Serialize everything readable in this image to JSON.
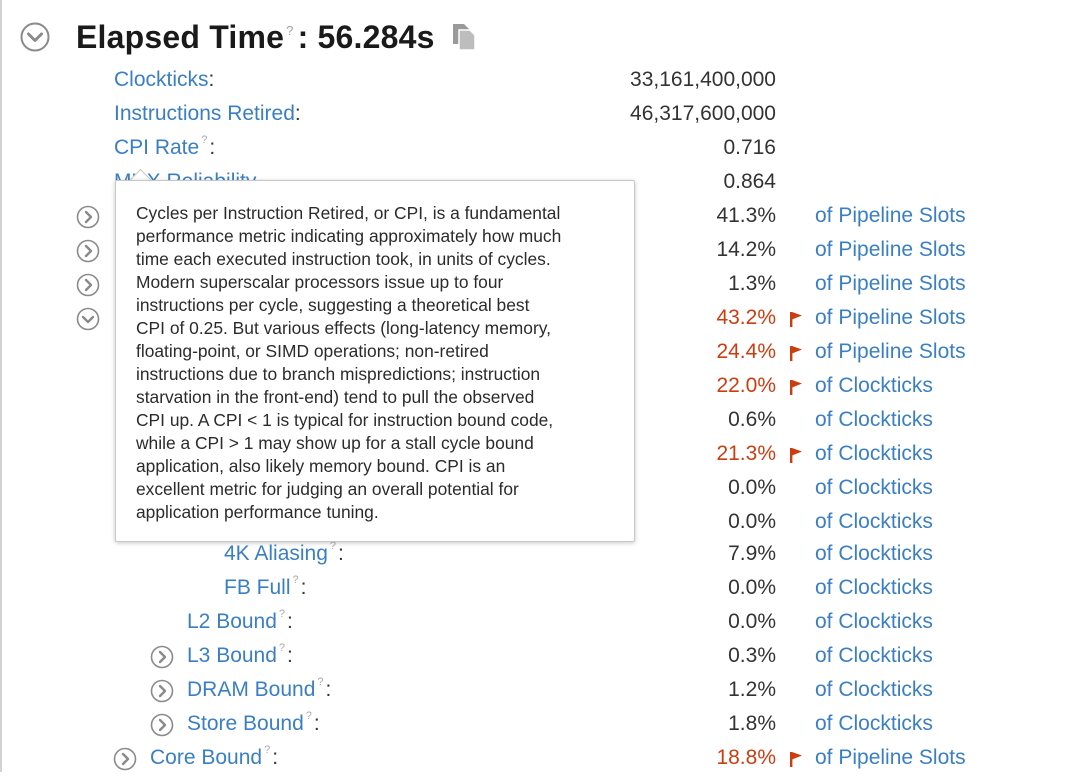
{
  "header": {
    "title": "Elapsed Time",
    "separator": ": ",
    "value": "56.284s",
    "help_mark": "?"
  },
  "summary": [
    {
      "label": "Clockticks",
      "value": "33,161,400,000"
    },
    {
      "label": "Instructions Retired",
      "value": "46,317,600,000"
    },
    {
      "label": "CPI Rate",
      "value": "0.716",
      "help": true
    },
    {
      "label": "MUX Reliability",
      "value": "0.864",
      "help": true
    }
  ],
  "metrics": [
    {
      "value": "41.3%",
      "unit": "of Pipeline Slots",
      "warn": false
    },
    {
      "value": "14.2%",
      "unit": "of Pipeline Slots",
      "warn": false
    },
    {
      "value": "1.3%",
      "unit": "of Pipeline Slots",
      "warn": false
    },
    {
      "value": "43.2%",
      "unit": "of Pipeline Slots",
      "warn": true
    },
    {
      "value": "24.4%",
      "unit": "of Pipeline Slots",
      "warn": true
    },
    {
      "value": "22.0%",
      "unit": "of Clockticks",
      "warn": true
    },
    {
      "value": "0.6%",
      "unit": "of Clockticks",
      "warn": false
    },
    {
      "value": "21.3%",
      "unit": "of Clockticks",
      "warn": true
    },
    {
      "value": "0.0%",
      "unit": "of Clockticks",
      "warn": false
    },
    {
      "value": "0.0%",
      "unit": "of Clockticks",
      "warn": false
    }
  ],
  "tree": [
    {
      "label": "4K Aliasing",
      "value": "7.9%",
      "unit": "of Clockticks",
      "warn": false,
      "expand": false
    },
    {
      "label": "FB Full",
      "value": "0.0%",
      "unit": "of Clockticks",
      "warn": false,
      "expand": false
    },
    {
      "label": "L2 Bound",
      "value": "0.0%",
      "unit": "of Clockticks",
      "warn": false,
      "expand": false
    },
    {
      "label": "L3 Bound",
      "value": "0.3%",
      "unit": "of Clockticks",
      "warn": false,
      "expand": true
    },
    {
      "label": "DRAM Bound",
      "value": "1.2%",
      "unit": "of Clockticks",
      "warn": false,
      "expand": true
    },
    {
      "label": "Store Bound",
      "value": "1.8%",
      "unit": "of Clockticks",
      "warn": false,
      "expand": true
    },
    {
      "label": "Core Bound",
      "value": "18.8%",
      "unit": "of Pipeline Slots",
      "warn": true,
      "expand": true
    }
  ],
  "tooltip": {
    "lines": [
      "Cycles per Instruction Retired, or CPI, is a fundamental",
      "performance metric indicating approximately how much",
      "time each executed instruction took, in units of cycles.",
      "Modern superscalar processors issue up to four",
      "instructions per cycle, suggesting a theoretical best",
      "CPI of 0.25. But various effects (long-latency memory,",
      "floating-point, or SIMD operations; non-retired",
      "instructions due to branch mispredictions; instruction",
      "starvation in the front-end) tend to pull the observed",
      "CPI up. A CPI < 1 is typical for instruction bound code,",
      "while a CPI > 1 may show up for a stall cycle bound",
      "application, also likely memory bound. CPI is an",
      "excellent metric for judging an overall potential for",
      "application performance tuning."
    ]
  },
  "colors": {
    "link": "#3a7fc4",
    "warning": "#cc3d10",
    "text": "#333333"
  },
  "icons": {
    "collapse": "circle-chevron-down-icon",
    "expand": "circle-chevron-right-icon",
    "copy": "copy-icon",
    "flag": "flag-icon",
    "help": "question-mark-icon"
  }
}
